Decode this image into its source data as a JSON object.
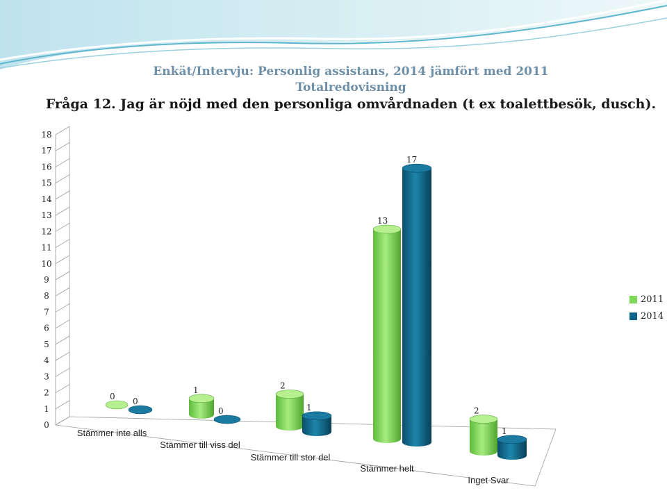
{
  "header": {
    "line1": "Enkät/Intervju: Personlig assistans, 2014 jämfört med 2011",
    "line2": "Totalredovisning",
    "line3": "Fråga 12. Jag är nöjd med den personliga omvårdnaden (t ex toalettbesök, dusch)."
  },
  "colors": {
    "s2011": "#7ed957",
    "s2014": "#0e6488",
    "title_blue": "#6e8fa8"
  },
  "chart_data": {
    "type": "bar",
    "categories": [
      "Stämmer inte alls",
      "Stämmer till viss del",
      "Stämmer till stor del",
      "Stämmer helt",
      "Inget Svar"
    ],
    "series": [
      {
        "name": "2011",
        "values": [
          0,
          1,
          2,
          13,
          2
        ]
      },
      {
        "name": "2014",
        "values": [
          0,
          0,
          1,
          17,
          1
        ]
      }
    ],
    "ylim": [
      0,
      18
    ],
    "yticks": [
      "0",
      "1",
      "2",
      "3",
      "4",
      "5",
      "6",
      "7",
      "8",
      "9",
      "10",
      "11",
      "12",
      "13",
      "14",
      "15",
      "16",
      "17",
      "18"
    ],
    "legend_position": "right",
    "grid": false
  }
}
